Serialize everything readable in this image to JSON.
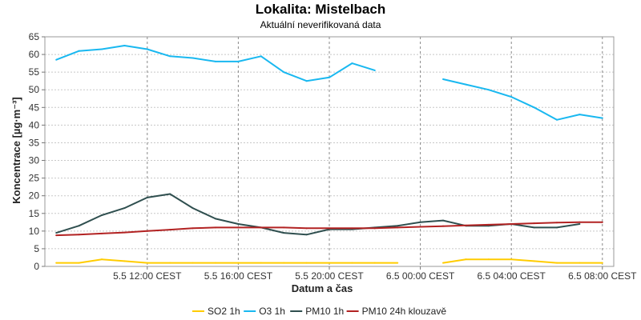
{
  "chart_data": {
    "type": "line",
    "title": "Lokalita: Mistelbach",
    "subtitle": "Aktuální neverifikovaná data",
    "xlabel": "Datum a čas",
    "ylabel": "Koncentrace [µg·m⁻³]",
    "ylim": [
      0,
      65
    ],
    "yticks": [
      0,
      5,
      10,
      15,
      20,
      25,
      30,
      35,
      40,
      45,
      50,
      55,
      60,
      65
    ],
    "xticks": [
      {
        "hour": 12,
        "label": "5.5 12:00 CEST"
      },
      {
        "hour": 16,
        "label": "5.5 16:00 CEST"
      },
      {
        "hour": 20,
        "label": "5.5 20:00 CEST"
      },
      {
        "hour": 24,
        "label": "6.5 00:00 CEST"
      },
      {
        "hour": 28,
        "label": "6.5 04:00 CEST"
      },
      {
        "hour": 32,
        "label": "6.5 08:00 CEST"
      }
    ],
    "xlim_hours": [
      7.5,
      32.5
    ],
    "x_hours": [
      8,
      9,
      10,
      11,
      12,
      13,
      14,
      15,
      16,
      17,
      18,
      19,
      20,
      21,
      22,
      23,
      24,
      25,
      26,
      27,
      28,
      29,
      30,
      31,
      32
    ],
    "grid": true,
    "legend_position": "bottom",
    "series": [
      {
        "name": "SO2 1h",
        "color": "#ffcc00",
        "values": [
          1,
          1,
          2,
          1.5,
          1,
          1,
          1,
          1,
          1,
          1,
          1,
          1,
          1,
          1,
          1,
          1,
          null,
          1,
          2,
          2,
          2,
          1.5,
          1,
          1,
          1
        ]
      },
      {
        "name": "O3 1h",
        "color": "#19b8f0",
        "values": [
          58.5,
          61,
          61.5,
          62.5,
          61.5,
          59.5,
          59,
          58,
          58,
          59.5,
          55,
          52.5,
          53.5,
          57.5,
          55.5,
          null,
          null,
          53,
          51.5,
          50,
          48,
          45,
          41.5,
          43,
          42
        ]
      },
      {
        "name": "PM10 1h",
        "color": "#2f4f4f",
        "values": [
          9.5,
          11.5,
          14.5,
          16.5,
          19.5,
          20.5,
          16.5,
          13.5,
          12,
          11,
          9.5,
          9,
          10.5,
          10.5,
          11,
          11.5,
          12.5,
          13,
          11.5,
          11.5,
          12,
          11,
          11,
          12,
          null
        ]
      },
      {
        "name": "PM10 24h klouzavě",
        "color": "#b22222",
        "values": [
          8.8,
          9,
          9.3,
          9.6,
          10,
          10.4,
          10.8,
          11,
          11,
          11,
          11,
          10.8,
          10.8,
          10.8,
          10.8,
          11,
          11.2,
          11.4,
          11.6,
          11.8,
          12,
          12.2,
          12.4,
          12.5,
          12.5
        ]
      }
    ]
  }
}
